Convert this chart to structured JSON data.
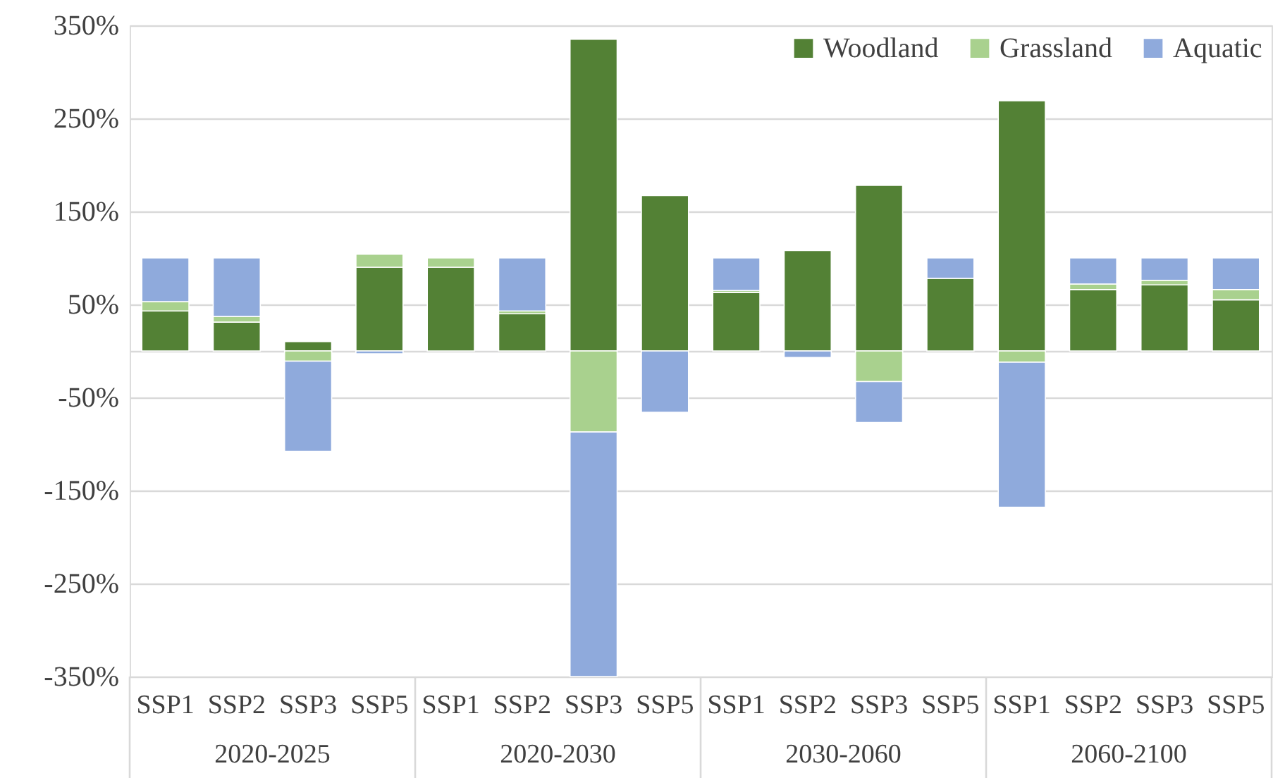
{
  "chart_data": {
    "type": "bar",
    "stacked": true,
    "categories": [
      "SSP1",
      "SSP2",
      "SSP3",
      "SSP5",
      "SSP1",
      "SSP2",
      "SSP3",
      "SSP5",
      "SSP1",
      "SSP2",
      "SSP3",
      "SSP5",
      "SSP1",
      "SSP2",
      "SSP3",
      "SSP5"
    ],
    "annotations": [
      "2020-2025",
      "2020-2030",
      "2030-2060",
      "2060-2100"
    ],
    "series": [
      {
        "name": "Woodland",
        "color": "#538135",
        "values": [
          43,
          31,
          10,
          90,
          90,
          40,
          335,
          167,
          63,
          108,
          178,
          78,
          269,
          66,
          71,
          55
        ]
      },
      {
        "name": "Grassland",
        "color": "#a9d18e",
        "values": [
          10,
          6,
          -11,
          14,
          10,
          3,
          -87,
          null,
          2,
          null,
          -33,
          null,
          -12,
          6,
          5,
          11
        ]
      },
      {
        "name": "Aquatic",
        "color": "#8faadc",
        "values": [
          47,
          63,
          -97,
          -3,
          null,
          57,
          -263,
          -66,
          35,
          -7,
          -44,
          22,
          -156,
          28,
          24,
          34
        ]
      }
    ],
    "ylim": [
      -350,
      350
    ],
    "yticks": [
      {
        "value": 350,
        "label": "350%"
      },
      {
        "value": 250,
        "label": "250%"
      },
      {
        "value": 150,
        "label": "150%"
      },
      {
        "value": 50,
        "label": "50%"
      },
      {
        "value": 0,
        "label": null
      },
      {
        "value": -50,
        "label": "-50%"
      },
      {
        "value": -150,
        "label": "-150%"
      },
      {
        "value": -250,
        "label": "-250%"
      },
      {
        "value": -350,
        "label": "-350%"
      }
    ],
    "grid": "y",
    "legend": "top right"
  }
}
